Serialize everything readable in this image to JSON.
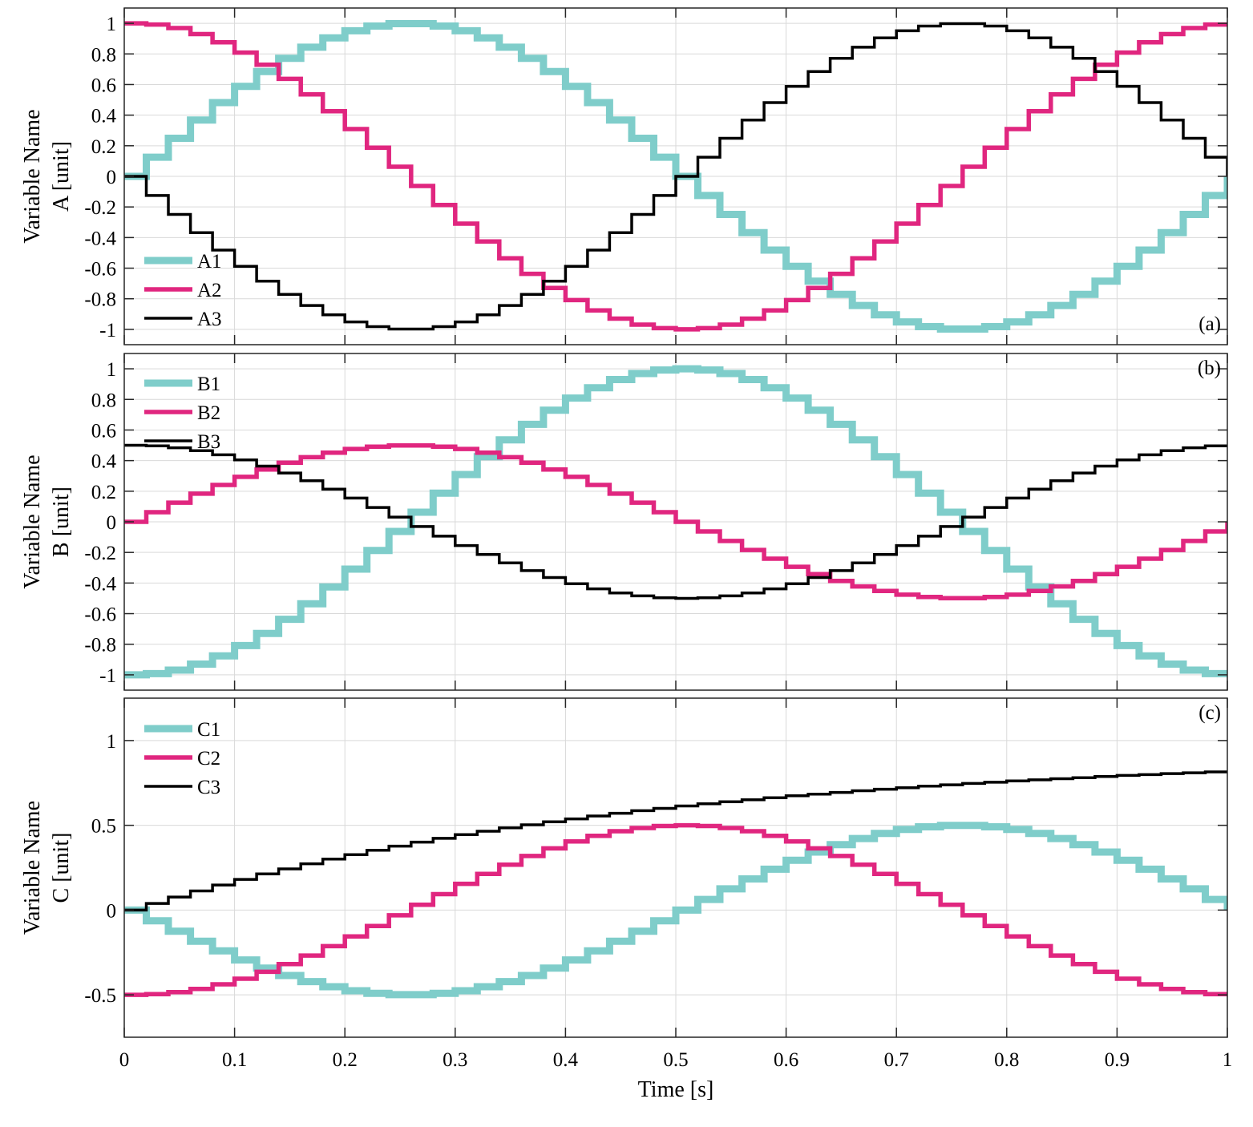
{
  "figure": {
    "xlabel": "Time [s]",
    "x_tick_labels": [
      "0",
      "0.1",
      "0.2",
      "0.3",
      "0.4",
      "0.5",
      "0.6",
      "0.7",
      "0.8",
      "0.9",
      "1"
    ]
  },
  "colors": {
    "series1": "#7fcdca",
    "series2": "#e0267f",
    "series3": "#000000",
    "grid": "#d9d9d9",
    "axis": "#262626"
  },
  "chart_data": [
    {
      "type": "line",
      "subtype": "step",
      "panel": "(a)",
      "ylabel_line1": "Variable Name",
      "ylabel_line2": "A [unit]",
      "xlim": [
        0,
        1
      ],
      "ylim": [
        -1.1,
        1.1
      ],
      "x_ticks": [
        0,
        0.1,
        0.2,
        0.3,
        0.4,
        0.5,
        0.6,
        0.7,
        0.8,
        0.9,
        1
      ],
      "y_ticks": [
        -1,
        -0.8,
        -0.6,
        -0.4,
        -0.2,
        0,
        0.2,
        0.4,
        0.6,
        0.8,
        1
      ],
      "y_tick_labels": [
        "-1",
        "-0.8",
        "-0.6",
        "-0.4",
        "-0.2",
        "0",
        "0.2",
        "0.4",
        "0.6",
        "0.8",
        "1"
      ],
      "grid": true,
      "legend_position": "bottom-left",
      "step_s": 0.02,
      "series": [
        {
          "name": "A1",
          "values": [
            0,
            0.125,
            0.249,
            0.368,
            0.482,
            0.588,
            0.685,
            0.771,
            0.844,
            0.905,
            0.951,
            0.982,
            0.998,
            0.998,
            0.982,
            0.951,
            0.905,
            0.844,
            0.771,
            0.685,
            0.588,
            0.482,
            0.368,
            0.249,
            0.125,
            0,
            -0.125,
            -0.249,
            -0.368,
            -0.482,
            -0.588,
            -0.685,
            -0.771,
            -0.844,
            -0.905,
            -0.951,
            -0.982,
            -0.998,
            -0.998,
            -0.982,
            -0.951,
            -0.905,
            -0.844,
            -0.771,
            -0.685,
            -0.588,
            -0.482,
            -0.368,
            -0.249,
            -0.125,
            0
          ]
        },
        {
          "name": "A2",
          "values": [
            1,
            0.992,
            0.969,
            0.93,
            0.876,
            0.809,
            0.729,
            0.637,
            0.536,
            0.426,
            0.309,
            0.187,
            0.063,
            -0.063,
            -0.187,
            -0.309,
            -0.426,
            -0.536,
            -0.637,
            -0.729,
            -0.809,
            -0.876,
            -0.93,
            -0.969,
            -0.992,
            -1,
            -0.992,
            -0.969,
            -0.93,
            -0.876,
            -0.809,
            -0.729,
            -0.637,
            -0.536,
            -0.426,
            -0.309,
            -0.187,
            -0.063,
            0.063,
            0.187,
            0.309,
            0.426,
            0.536,
            0.637,
            0.729,
            0.809,
            0.876,
            0.93,
            0.969,
            0.992,
            1
          ]
        },
        {
          "name": "A3",
          "values": [
            0,
            -0.125,
            -0.249,
            -0.368,
            -0.482,
            -0.588,
            -0.685,
            -0.771,
            -0.844,
            -0.905,
            -0.951,
            -0.982,
            -0.998,
            -0.998,
            -0.982,
            -0.951,
            -0.905,
            -0.844,
            -0.771,
            -0.685,
            -0.588,
            -0.482,
            -0.368,
            -0.249,
            -0.125,
            0,
            0.125,
            0.249,
            0.368,
            0.482,
            0.588,
            0.685,
            0.771,
            0.844,
            0.905,
            0.951,
            0.982,
            0.998,
            0.998,
            0.982,
            0.951,
            0.905,
            0.844,
            0.771,
            0.685,
            0.588,
            0.482,
            0.368,
            0.249,
            0.125,
            0
          ]
        }
      ]
    },
    {
      "type": "line",
      "subtype": "step",
      "panel": "(b)",
      "ylabel_line1": "Variable Name",
      "ylabel_line2": "B [unit]",
      "xlim": [
        0,
        1
      ],
      "ylim": [
        -1.1,
        1.1
      ],
      "x_ticks": [
        0,
        0.1,
        0.2,
        0.3,
        0.4,
        0.5,
        0.6,
        0.7,
        0.8,
        0.9,
        1
      ],
      "y_ticks": [
        -1,
        -0.8,
        -0.6,
        -0.4,
        -0.2,
        0,
        0.2,
        0.4,
        0.6,
        0.8,
        1
      ],
      "y_tick_labels": [
        "-1",
        "-0.8",
        "-0.6",
        "-0.4",
        "-0.2",
        "0",
        "0.2",
        "0.4",
        "0.6",
        "0.8",
        "1"
      ],
      "grid": true,
      "legend_position": "top-left",
      "step_s": 0.02,
      "series": [
        {
          "name": "B1",
          "values": [
            -1,
            -0.992,
            -0.969,
            -0.93,
            -0.876,
            -0.809,
            -0.729,
            -0.637,
            -0.536,
            -0.426,
            -0.309,
            -0.187,
            -0.063,
            0.063,
            0.187,
            0.309,
            0.426,
            0.536,
            0.637,
            0.729,
            0.809,
            0.876,
            0.93,
            0.969,
            0.992,
            1,
            0.992,
            0.969,
            0.93,
            0.876,
            0.809,
            0.729,
            0.637,
            0.536,
            0.426,
            0.309,
            0.187,
            0.063,
            -0.063,
            -0.187,
            -0.309,
            -0.426,
            -0.536,
            -0.637,
            -0.729,
            -0.809,
            -0.876,
            -0.93,
            -0.969,
            -0.992,
            -1
          ]
        },
        {
          "name": "B2",
          "values": [
            0,
            0.063,
            0.125,
            0.184,
            0.241,
            0.294,
            0.342,
            0.386,
            0.422,
            0.452,
            0.476,
            0.491,
            0.499,
            0.499,
            0.491,
            0.476,
            0.452,
            0.422,
            0.386,
            0.342,
            0.294,
            0.241,
            0.184,
            0.125,
            0.063,
            0,
            -0.063,
            -0.125,
            -0.184,
            -0.241,
            -0.294,
            -0.342,
            -0.386,
            -0.422,
            -0.452,
            -0.476,
            -0.491,
            -0.499,
            -0.499,
            -0.491,
            -0.476,
            -0.452,
            -0.422,
            -0.386,
            -0.342,
            -0.294,
            -0.241,
            -0.184,
            -0.125,
            -0.063,
            0
          ]
        },
        {
          "name": "B3",
          "values": [
            0.5,
            0.496,
            0.484,
            0.465,
            0.438,
            0.405,
            0.364,
            0.319,
            0.268,
            0.213,
            0.155,
            0.094,
            0.031,
            -0.031,
            -0.094,
            -0.155,
            -0.213,
            -0.268,
            -0.319,
            -0.364,
            -0.405,
            -0.438,
            -0.465,
            -0.484,
            -0.496,
            -0.5,
            -0.496,
            -0.484,
            -0.465,
            -0.438,
            -0.405,
            -0.364,
            -0.319,
            -0.268,
            -0.213,
            -0.155,
            -0.094,
            -0.031,
            0.031,
            0.094,
            0.155,
            0.213,
            0.268,
            0.319,
            0.364,
            0.405,
            0.438,
            0.465,
            0.484,
            0.496,
            0.5
          ]
        }
      ]
    },
    {
      "type": "line",
      "subtype": "step",
      "panel": "(c)",
      "ylabel_line1": "Variable Name",
      "ylabel_line2": "C [unit]",
      "xlim": [
        0,
        1
      ],
      "ylim": [
        -0.75,
        1.25
      ],
      "x_ticks": [
        0,
        0.1,
        0.2,
        0.3,
        0.4,
        0.5,
        0.6,
        0.7,
        0.8,
        0.9,
        1
      ],
      "y_ticks": [
        -0.5,
        0,
        0.5,
        1
      ],
      "y_tick_labels": [
        "-0.5",
        "0",
        "0.5",
        "1"
      ],
      "grid": true,
      "legend_position": "top-left",
      "step_s": 0.02,
      "series": [
        {
          "name": "C1",
          "values": [
            0,
            -0.063,
            -0.125,
            -0.184,
            -0.241,
            -0.294,
            -0.342,
            -0.386,
            -0.422,
            -0.452,
            -0.476,
            -0.491,
            -0.499,
            -0.499,
            -0.491,
            -0.476,
            -0.452,
            -0.422,
            -0.386,
            -0.342,
            -0.294,
            -0.241,
            -0.184,
            -0.125,
            -0.063,
            0,
            0.063,
            0.125,
            0.184,
            0.241,
            0.294,
            0.342,
            0.386,
            0.422,
            0.452,
            0.476,
            0.491,
            0.499,
            0.499,
            0.491,
            0.476,
            0.452,
            0.422,
            0.386,
            0.342,
            0.294,
            0.241,
            0.184,
            0.125,
            0.063,
            0
          ]
        },
        {
          "name": "C2",
          "values": [
            -0.5,
            -0.496,
            -0.484,
            -0.465,
            -0.438,
            -0.405,
            -0.364,
            -0.319,
            -0.268,
            -0.213,
            -0.155,
            -0.094,
            -0.031,
            0.031,
            0.094,
            0.155,
            0.213,
            0.268,
            0.319,
            0.364,
            0.405,
            0.438,
            0.465,
            0.484,
            0.496,
            0.5,
            0.496,
            0.484,
            0.465,
            0.438,
            0.405,
            0.364,
            0.319,
            0.268,
            0.213,
            0.155,
            0.094,
            0.031,
            -0.031,
            -0.094,
            -0.155,
            -0.213,
            -0.268,
            -0.319,
            -0.364,
            -0.405,
            -0.438,
            -0.465,
            -0.484,
            -0.496,
            -0.5
          ]
        },
        {
          "name": "C3",
          "values": [
            0,
            0.039,
            0.077,
            0.113,
            0.148,
            0.181,
            0.213,
            0.243,
            0.273,
            0.301,
            0.327,
            0.353,
            0.377,
            0.401,
            0.423,
            0.445,
            0.465,
            0.485,
            0.503,
            0.521,
            0.538,
            0.555,
            0.571,
            0.586,
            0.6,
            0.614,
            0.627,
            0.639,
            0.651,
            0.663,
            0.674,
            0.684,
            0.694,
            0.704,
            0.713,
            0.722,
            0.731,
            0.739,
            0.747,
            0.754,
            0.762,
            0.768,
            0.775,
            0.781,
            0.788,
            0.794,
            0.799,
            0.805,
            0.81,
            0.815,
            0.82
          ]
        }
      ]
    }
  ]
}
